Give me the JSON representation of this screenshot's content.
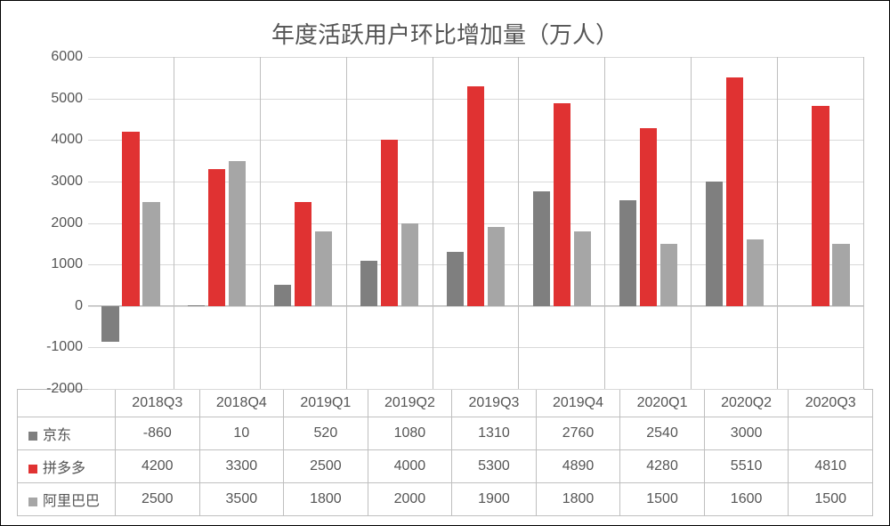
{
  "title": "年度活跃用户环比增加量（万人）",
  "chart": {
    "type": "bar",
    "ymin": -2000,
    "ymax": 6000,
    "ytick_step": 1000,
    "yticks": [
      -2000,
      -1000,
      0,
      1000,
      2000,
      3000,
      4000,
      5000,
      6000
    ],
    "grid_color": "#d9d9d9",
    "axis_color": "#bfbfbf",
    "background_color": "#ffffff",
    "title_fontsize": 26,
    "label_fontsize": 16,
    "bar_group_gap": 0.08,
    "categories": [
      "2018Q3",
      "2018Q4",
      "2019Q1",
      "2019Q2",
      "2019Q3",
      "2019Q4",
      "2020Q1",
      "2020Q2",
      "2020Q3"
    ],
    "series": [
      {
        "name": "京东",
        "color": "#7f7f7f",
        "values": [
          -860,
          10,
          520,
          1080,
          1310,
          2760,
          2540,
          3000,
          null
        ]
      },
      {
        "name": "拼多多",
        "color": "#e03232",
        "values": [
          4200,
          3300,
          2500,
          4000,
          5300,
          4890,
          4280,
          5510,
          4810
        ]
      },
      {
        "name": "阿里巴巴",
        "color": "#a6a6a6",
        "values": [
          2500,
          3500,
          1800,
          2000,
          1900,
          1800,
          1500,
          1600,
          1500
        ]
      }
    ]
  }
}
